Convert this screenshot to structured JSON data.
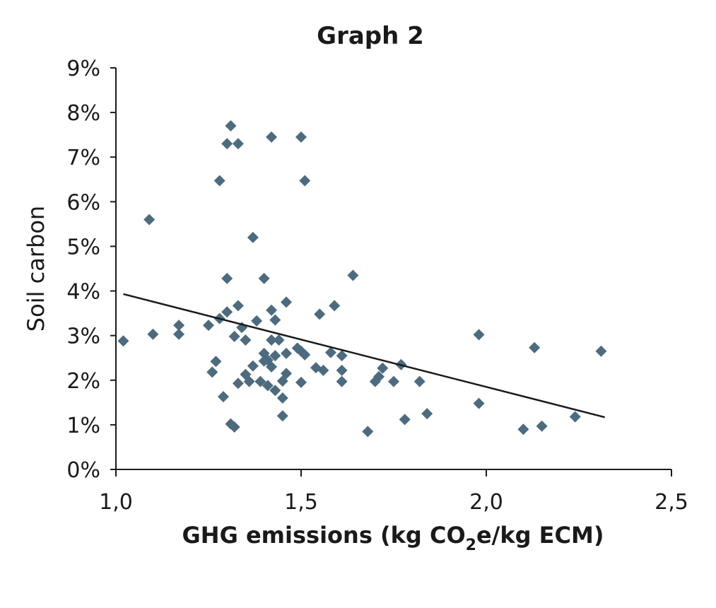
{
  "chart_data": {
    "type": "scatter",
    "title": "Graph 2",
    "xlabel": {
      "pre": "GHG emissions (kg CO",
      "sub": "2",
      "post": "e/kg ECM)"
    },
    "ylabel": "Soil carbon",
    "xlim": [
      1.0,
      2.5
    ],
    "ylim": [
      0,
      9
    ],
    "x_ticks": [
      {
        "value": 1.0,
        "label": "1,0"
      },
      {
        "value": 1.5,
        "label": "1,5"
      },
      {
        "value": 2.0,
        "label": "2,0"
      },
      {
        "value": 2.5,
        "label": "2,5"
      }
    ],
    "y_ticks": [
      {
        "value": 0,
        "label": "0%"
      },
      {
        "value": 1,
        "label": "1%"
      },
      {
        "value": 2,
        "label": "2%"
      },
      {
        "value": 3,
        "label": "3%"
      },
      {
        "value": 4,
        "label": "4%"
      },
      {
        "value": 5,
        "label": "5%"
      },
      {
        "value": 6,
        "label": "6%"
      },
      {
        "value": 7,
        "label": "7%"
      },
      {
        "value": 8,
        "label": "8%"
      },
      {
        "value": 9,
        "label": "9%"
      }
    ],
    "grid": false,
    "marker": "diamond",
    "marker_color": "#4d6b7e",
    "trendline": {
      "x": [
        1.02,
        2.32
      ],
      "y": [
        3.93,
        1.17
      ],
      "color": "#1a1a1a"
    },
    "points": [
      {
        "x": 1.02,
        "y": 2.88
      },
      {
        "x": 1.09,
        "y": 5.6
      },
      {
        "x": 1.1,
        "y": 3.03
      },
      {
        "x": 1.17,
        "y": 3.23
      },
      {
        "x": 1.17,
        "y": 3.03
      },
      {
        "x": 1.25,
        "y": 3.23
      },
      {
        "x": 1.26,
        "y": 2.18
      },
      {
        "x": 1.27,
        "y": 2.42
      },
      {
        "x": 1.28,
        "y": 3.38
      },
      {
        "x": 1.28,
        "y": 6.47
      },
      {
        "x": 1.29,
        "y": 1.63
      },
      {
        "x": 1.3,
        "y": 3.53
      },
      {
        "x": 1.3,
        "y": 4.28
      },
      {
        "x": 1.3,
        "y": 7.3
      },
      {
        "x": 1.31,
        "y": 7.7
      },
      {
        "x": 1.31,
        "y": 1.02
      },
      {
        "x": 1.32,
        "y": 2.98
      },
      {
        "x": 1.32,
        "y": 0.95
      },
      {
        "x": 1.33,
        "y": 1.93
      },
      {
        "x": 1.33,
        "y": 3.67
      },
      {
        "x": 1.33,
        "y": 7.3
      },
      {
        "x": 1.34,
        "y": 3.18
      },
      {
        "x": 1.35,
        "y": 2.13
      },
      {
        "x": 1.35,
        "y": 2.9
      },
      {
        "x": 1.36,
        "y": 1.97
      },
      {
        "x": 1.37,
        "y": 5.2
      },
      {
        "x": 1.37,
        "y": 2.32
      },
      {
        "x": 1.38,
        "y": 3.33
      },
      {
        "x": 1.39,
        "y": 1.97
      },
      {
        "x": 1.4,
        "y": 2.6
      },
      {
        "x": 1.4,
        "y": 2.43
      },
      {
        "x": 1.4,
        "y": 4.28
      },
      {
        "x": 1.41,
        "y": 1.88
      },
      {
        "x": 1.41,
        "y": 2.45
      },
      {
        "x": 1.42,
        "y": 2.3
      },
      {
        "x": 1.42,
        "y": 2.9
      },
      {
        "x": 1.42,
        "y": 3.57
      },
      {
        "x": 1.42,
        "y": 7.45
      },
      {
        "x": 1.43,
        "y": 2.55
      },
      {
        "x": 1.43,
        "y": 1.77
      },
      {
        "x": 1.43,
        "y": 3.35
      },
      {
        "x": 1.44,
        "y": 2.9
      },
      {
        "x": 1.45,
        "y": 1.98
      },
      {
        "x": 1.45,
        "y": 1.6
      },
      {
        "x": 1.45,
        "y": 1.2
      },
      {
        "x": 1.46,
        "y": 2.15
      },
      {
        "x": 1.46,
        "y": 2.6
      },
      {
        "x": 1.46,
        "y": 3.75
      },
      {
        "x": 1.49,
        "y": 2.72
      },
      {
        "x": 1.5,
        "y": 1.95
      },
      {
        "x": 1.5,
        "y": 2.65
      },
      {
        "x": 1.5,
        "y": 7.45
      },
      {
        "x": 1.51,
        "y": 6.47
      },
      {
        "x": 1.51,
        "y": 2.57
      },
      {
        "x": 1.54,
        "y": 2.28
      },
      {
        "x": 1.55,
        "y": 3.48
      },
      {
        "x": 1.56,
        "y": 2.22
      },
      {
        "x": 1.58,
        "y": 2.62
      },
      {
        "x": 1.59,
        "y": 3.67
      },
      {
        "x": 1.61,
        "y": 2.55
      },
      {
        "x": 1.61,
        "y": 2.22
      },
      {
        "x": 1.61,
        "y": 1.97
      },
      {
        "x": 1.64,
        "y": 4.35
      },
      {
        "x": 1.68,
        "y": 0.85
      },
      {
        "x": 1.7,
        "y": 1.97
      },
      {
        "x": 1.71,
        "y": 2.08
      },
      {
        "x": 1.72,
        "y": 2.27
      },
      {
        "x": 1.75,
        "y": 1.97
      },
      {
        "x": 1.77,
        "y": 2.35
      },
      {
        "x": 1.78,
        "y": 1.12
      },
      {
        "x": 1.82,
        "y": 1.97
      },
      {
        "x": 1.84,
        "y": 1.25
      },
      {
        "x": 1.98,
        "y": 3.02
      },
      {
        "x": 1.98,
        "y": 1.48
      },
      {
        "x": 2.1,
        "y": 0.9
      },
      {
        "x": 2.13,
        "y": 2.73
      },
      {
        "x": 2.15,
        "y": 0.97
      },
      {
        "x": 2.24,
        "y": 1.18
      },
      {
        "x": 2.31,
        "y": 2.65
      }
    ]
  }
}
